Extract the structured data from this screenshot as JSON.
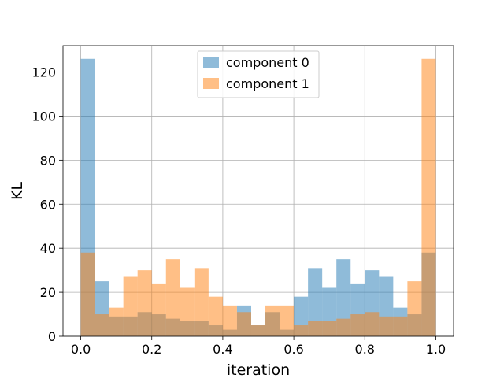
{
  "chart_data": {
    "type": "bar",
    "title": "",
    "xlabel": "iteration",
    "ylabel": "KL",
    "xlim": [
      -0.05,
      1.05
    ],
    "ylim": [
      0,
      132
    ],
    "xticks": [
      "0.0",
      "0.2",
      "0.4",
      "0.6",
      "0.8",
      "1.0"
    ],
    "xtick_values": [
      0.0,
      0.2,
      0.4,
      0.6,
      0.8,
      1.0
    ],
    "yticks": [
      "0",
      "20",
      "40",
      "60",
      "80",
      "100",
      "120"
    ],
    "ytick_values": [
      0,
      20,
      40,
      60,
      80,
      100,
      120
    ],
    "grid": true,
    "legend_position": "top-center",
    "bin_edges": [
      0.0,
      0.04,
      0.08,
      0.12,
      0.16,
      0.2,
      0.24,
      0.28,
      0.32,
      0.36,
      0.4,
      0.44,
      0.48,
      0.52,
      0.56,
      0.6,
      0.64,
      0.68,
      0.72,
      0.76,
      0.8,
      0.84,
      0.88,
      0.92,
      0.96,
      1.0
    ],
    "series": [
      {
        "name": "component 0",
        "color": "#1f77b4",
        "opacity": 0.5,
        "values": [
          126,
          25,
          9,
          9,
          11,
          10,
          8,
          7,
          7,
          5,
          3,
          14,
          5,
          11,
          3,
          18,
          31,
          22,
          35,
          24,
          30,
          27,
          13,
          10,
          38
        ]
      },
      {
        "name": "component 1",
        "color": "#ff7f0e",
        "opacity": 0.5,
        "values": [
          38,
          10,
          13,
          27,
          30,
          24,
          35,
          22,
          31,
          18,
          14,
          11,
          5,
          14,
          14,
          5,
          7,
          7,
          8,
          10,
          11,
          9,
          9,
          25,
          126
        ]
      }
    ]
  }
}
